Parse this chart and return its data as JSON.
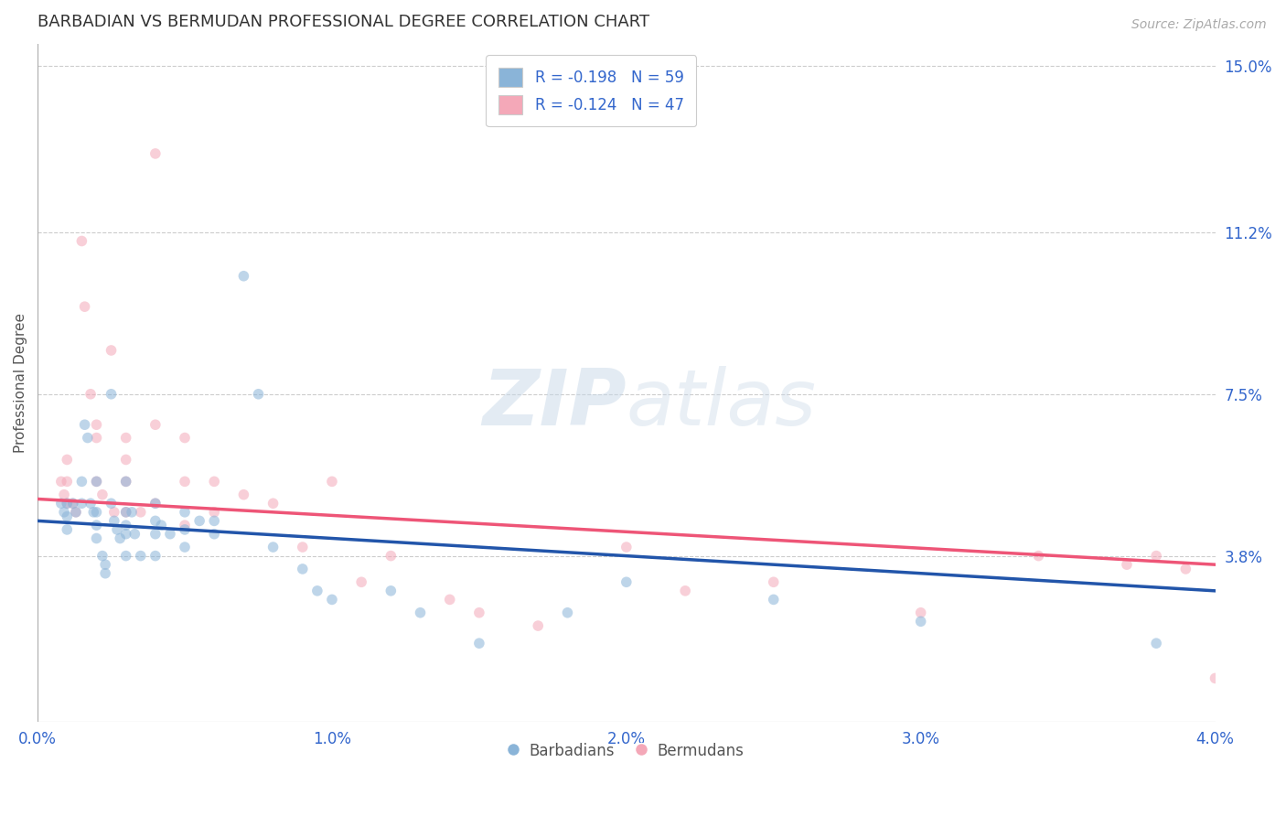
{
  "title": "BARBADIAN VS BERMUDAN PROFESSIONAL DEGREE CORRELATION CHART",
  "source": "Source: ZipAtlas.com",
  "ylabel": "Professional Degree",
  "watermark": "ZIPatlas",
  "legend_blue_label": "R = -0.198   N = 59",
  "legend_pink_label": "R = -0.124   N = 47",
  "bottom_legend_blue": "Barbadians",
  "bottom_legend_pink": "Bermudans",
  "xlim": [
    0.0,
    0.04
  ],
  "ylim": [
    0.0,
    0.155
  ],
  "yticks": [
    0.038,
    0.075,
    0.112,
    0.15
  ],
  "ytick_labels": [
    "3.8%",
    "7.5%",
    "11.2%",
    "15.0%"
  ],
  "xtick_labels": [
    "0.0%",
    "1.0%",
    "2.0%",
    "3.0%",
    "4.0%"
  ],
  "xticks": [
    0.0,
    0.01,
    0.02,
    0.03,
    0.04
  ],
  "blue_color": "#8AB4D8",
  "pink_color": "#F4A8B8",
  "title_color": "#333333",
  "axis_label_color": "#555555",
  "tick_color": "#3366CC",
  "grid_color": "#CCCCCC",
  "line_blue_color": "#2255AA",
  "line_pink_color": "#EE5577",
  "blue_line_x": [
    0.0,
    0.04
  ],
  "blue_line_y": [
    0.046,
    0.03
  ],
  "pink_line_x": [
    0.0,
    0.04
  ],
  "pink_line_y": [
    0.051,
    0.036
  ],
  "blue_x": [
    0.0008,
    0.0009,
    0.001,
    0.001,
    0.001,
    0.0012,
    0.0013,
    0.0015,
    0.0015,
    0.0016,
    0.0017,
    0.0018,
    0.0019,
    0.002,
    0.002,
    0.002,
    0.002,
    0.0022,
    0.0023,
    0.0023,
    0.0025,
    0.0025,
    0.0026,
    0.0027,
    0.0028,
    0.003,
    0.003,
    0.003,
    0.003,
    0.003,
    0.0032,
    0.0033,
    0.0035,
    0.004,
    0.004,
    0.004,
    0.004,
    0.0042,
    0.0045,
    0.005,
    0.005,
    0.005,
    0.0055,
    0.006,
    0.006,
    0.007,
    0.0075,
    0.008,
    0.009,
    0.0095,
    0.01,
    0.012,
    0.013,
    0.015,
    0.018,
    0.02,
    0.025,
    0.03,
    0.038
  ],
  "blue_y": [
    0.05,
    0.048,
    0.05,
    0.047,
    0.044,
    0.05,
    0.048,
    0.055,
    0.05,
    0.068,
    0.065,
    0.05,
    0.048,
    0.055,
    0.048,
    0.045,
    0.042,
    0.038,
    0.036,
    0.034,
    0.075,
    0.05,
    0.046,
    0.044,
    0.042,
    0.055,
    0.048,
    0.045,
    0.043,
    0.038,
    0.048,
    0.043,
    0.038,
    0.05,
    0.046,
    0.043,
    0.038,
    0.045,
    0.043,
    0.048,
    0.044,
    0.04,
    0.046,
    0.046,
    0.043,
    0.102,
    0.075,
    0.04,
    0.035,
    0.03,
    0.028,
    0.03,
    0.025,
    0.018,
    0.025,
    0.032,
    0.028,
    0.023,
    0.018
  ],
  "pink_x": [
    0.0008,
    0.0009,
    0.001,
    0.001,
    0.001,
    0.0012,
    0.0013,
    0.0015,
    0.0016,
    0.0018,
    0.002,
    0.002,
    0.002,
    0.0022,
    0.0025,
    0.0026,
    0.003,
    0.003,
    0.003,
    0.003,
    0.0035,
    0.004,
    0.004,
    0.004,
    0.005,
    0.005,
    0.005,
    0.006,
    0.006,
    0.007,
    0.008,
    0.009,
    0.01,
    0.011,
    0.012,
    0.014,
    0.015,
    0.017,
    0.02,
    0.022,
    0.025,
    0.03,
    0.034,
    0.037,
    0.038,
    0.039,
    0.04
  ],
  "pink_y": [
    0.055,
    0.052,
    0.06,
    0.055,
    0.05,
    0.05,
    0.048,
    0.11,
    0.095,
    0.075,
    0.068,
    0.065,
    0.055,
    0.052,
    0.085,
    0.048,
    0.065,
    0.06,
    0.055,
    0.048,
    0.048,
    0.13,
    0.068,
    0.05,
    0.065,
    0.055,
    0.045,
    0.055,
    0.048,
    0.052,
    0.05,
    0.04,
    0.055,
    0.032,
    0.038,
    0.028,
    0.025,
    0.022,
    0.04,
    0.03,
    0.032,
    0.025,
    0.038,
    0.036,
    0.038,
    0.035,
    0.01
  ],
  "blue_R": -0.198,
  "pink_R": -0.124,
  "blue_N": 59,
  "pink_N": 47,
  "marker_size": 70,
  "marker_alpha": 0.55,
  "figsize": [
    14.06,
    8.92
  ],
  "dpi": 100
}
